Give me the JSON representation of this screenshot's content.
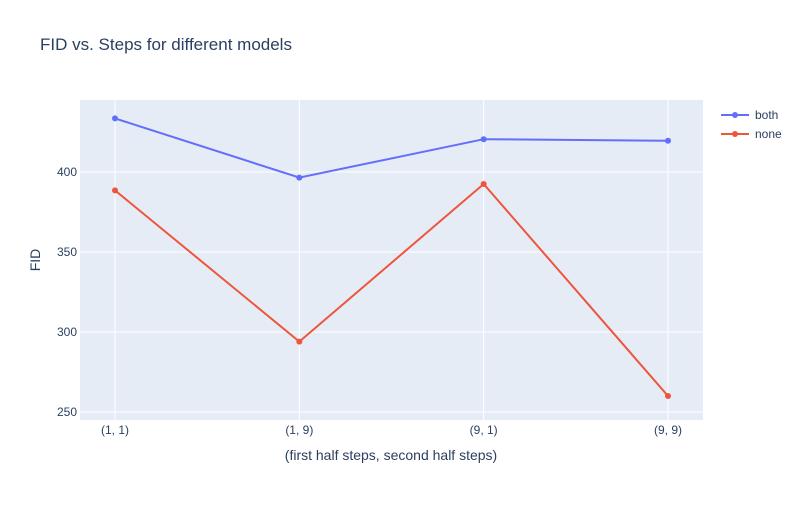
{
  "chart_data": {
    "type": "line",
    "title": "FID vs. Steps for different models",
    "xlabel": "(first half steps, second half steps)",
    "ylabel": "FID",
    "categories": [
      "(1, 1)",
      "(1, 9)",
      "(9, 1)",
      "(9, 9)"
    ],
    "ylim": [
      245,
      445
    ],
    "yticks": [
      250,
      300,
      350,
      400
    ],
    "grid": true,
    "legend_position": "top-right",
    "series": [
      {
        "name": "both",
        "color": "#636efa",
        "values": [
          433.5,
          396.5,
          420.5,
          419.5
        ]
      },
      {
        "name": "none",
        "color": "#ef553b",
        "values": [
          388.5,
          294,
          392.5,
          260
        ]
      }
    ]
  }
}
